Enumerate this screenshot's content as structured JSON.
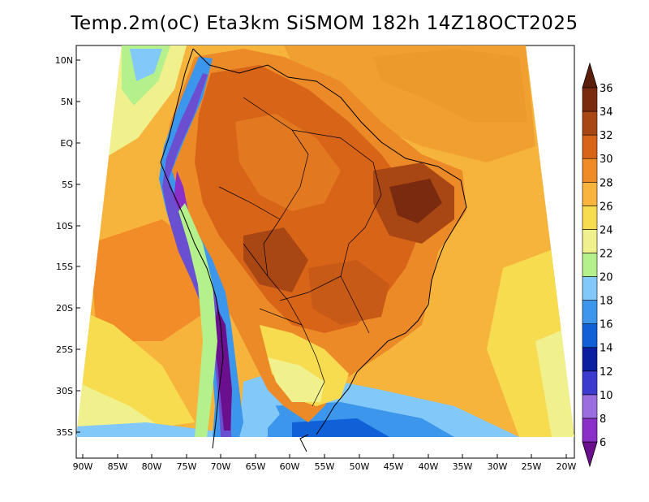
{
  "title": "Temp.2m(oC) Eta3km SiSMOM 182h 14Z18OCT2025",
  "lat_labels": [
    "10N",
    "5N",
    "EQ",
    "5S",
    "10S",
    "15S",
    "20S",
    "25S",
    "30S",
    "35S"
  ],
  "lon_labels": [
    "90W",
    "85W",
    "80W",
    "75W",
    "70W",
    "65W",
    "60W",
    "55W",
    "50W",
    "45W",
    "40W",
    "35W",
    "30W",
    "25W",
    "20W"
  ],
  "colorbar": {
    "labels": [
      "6",
      "8",
      "10",
      "12",
      "14",
      "16",
      "18",
      "20",
      "22",
      "24",
      "26",
      "28",
      "30",
      "32",
      "34",
      "36"
    ],
    "colors": [
      "#6a0f8e",
      "#8a2fc8",
      "#9a6de0",
      "#3b3bd0",
      "#0a1ea0",
      "#1060d8",
      "#3c96ec",
      "#82c8f8",
      "#b4f08c",
      "#f0f08c",
      "#f8dc50",
      "#f8b43c",
      "#f08c28",
      "#d86418",
      "#a84614",
      "#7a2a0e",
      "#5a1e0a"
    ]
  }
}
